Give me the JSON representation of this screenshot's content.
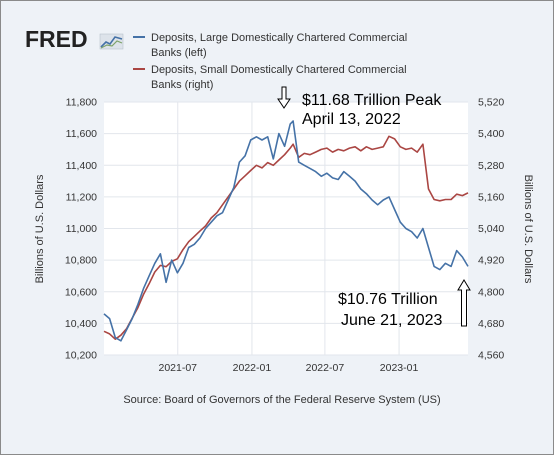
{
  "logo": {
    "text": "FRED"
  },
  "colors": {
    "left_series": "#4572a7",
    "right_series": "#aa4643",
    "plot_bg": "#ffffff",
    "page_bg": "#eef2f7",
    "grid": "#e2e6ec"
  },
  "source": "Source: Board of Governors of the Federal Reserve System (US)",
  "annotations": {
    "peak_line1": "$11.68 Trillion Peak",
    "peak_line2": "April 13, 2022",
    "current_line1": "$10.76 Trillion",
    "current_line2": "June 21, 2023"
  },
  "chart_data": {
    "type": "line",
    "grid": true,
    "legend_position": "top-left",
    "xlim": [
      "2020-12-30",
      "2023-06-21"
    ],
    "x_ticks": [
      "2021-07",
      "2022-01",
      "2022-07",
      "2023-01"
    ],
    "left_axis": {
      "label": "Billions of U.S. Dollars",
      "ylim": [
        10200,
        11800
      ],
      "ticks": [
        "10,200",
        "10,400",
        "10,600",
        "10,800",
        "11,000",
        "11,200",
        "11,400",
        "11,600",
        "11,800"
      ]
    },
    "right_axis": {
      "label": "Billions of U.S. Dollars",
      "ylim": [
        4560,
        5520
      ],
      "ticks": [
        "4,560",
        "4,680",
        "4,800",
        "4,920",
        "5,040",
        "5,160",
        "5,280",
        "5,400",
        "5,520"
      ]
    },
    "series": [
      {
        "name": "Deposits, Large Domestically Chartered Commercial Banks (left)",
        "name_lines": [
          "Deposits, Large Domestically Chartered Commercial",
          "Banks (left)"
        ],
        "axis": "left",
        "color": "#4572a7",
        "points": [
          [
            "2020-12-30",
            10460
          ],
          [
            "2021-01-13",
            10430
          ],
          [
            "2021-01-27",
            10310
          ],
          [
            "2021-02-10",
            10290
          ],
          [
            "2021-02-24",
            10360
          ],
          [
            "2021-03-10",
            10430
          ],
          [
            "2021-03-24",
            10520
          ],
          [
            "2021-04-07",
            10620
          ],
          [
            "2021-04-21",
            10700
          ],
          [
            "2021-05-05",
            10780
          ],
          [
            "2021-05-19",
            10840
          ],
          [
            "2021-06-02",
            10660
          ],
          [
            "2021-06-16",
            10800
          ],
          [
            "2021-06-30",
            10720
          ],
          [
            "2021-07-14",
            10780
          ],
          [
            "2021-07-28",
            10880
          ],
          [
            "2021-08-11",
            10900
          ],
          [
            "2021-08-25",
            10940
          ],
          [
            "2021-09-08",
            11000
          ],
          [
            "2021-09-22",
            11040
          ],
          [
            "2021-10-06",
            11080
          ],
          [
            "2021-10-20",
            11100
          ],
          [
            "2021-11-03",
            11180
          ],
          [
            "2021-11-17",
            11260
          ],
          [
            "2021-12-01",
            11420
          ],
          [
            "2021-12-15",
            11460
          ],
          [
            "2021-12-29",
            11560
          ],
          [
            "2022-01-12",
            11580
          ],
          [
            "2022-01-26",
            11560
          ],
          [
            "2022-02-09",
            11580
          ],
          [
            "2022-02-23",
            11440
          ],
          [
            "2022-03-09",
            11600
          ],
          [
            "2022-03-23",
            11520
          ],
          [
            "2022-04-06",
            11660
          ],
          [
            "2022-04-13",
            11680
          ],
          [
            "2022-04-27",
            11420
          ],
          [
            "2022-05-11",
            11400
          ],
          [
            "2022-05-25",
            11380
          ],
          [
            "2022-06-08",
            11360
          ],
          [
            "2022-06-22",
            11330
          ],
          [
            "2022-07-06",
            11350
          ],
          [
            "2022-07-20",
            11320
          ],
          [
            "2022-08-03",
            11310
          ],
          [
            "2022-08-17",
            11360
          ],
          [
            "2022-08-31",
            11330
          ],
          [
            "2022-09-14",
            11300
          ],
          [
            "2022-09-28",
            11250
          ],
          [
            "2022-10-12",
            11220
          ],
          [
            "2022-10-26",
            11180
          ],
          [
            "2022-11-09",
            11150
          ],
          [
            "2022-11-23",
            11180
          ],
          [
            "2022-12-07",
            11200
          ],
          [
            "2022-12-21",
            11120
          ],
          [
            "2023-01-04",
            11040
          ],
          [
            "2023-01-18",
            11000
          ],
          [
            "2023-02-01",
            10980
          ],
          [
            "2023-02-15",
            10940
          ],
          [
            "2023-03-01",
            11000
          ],
          [
            "2023-03-15",
            10880
          ],
          [
            "2023-03-29",
            10760
          ],
          [
            "2023-04-12",
            10740
          ],
          [
            "2023-04-26",
            10780
          ],
          [
            "2023-05-10",
            10760
          ],
          [
            "2023-05-24",
            10860
          ],
          [
            "2023-06-07",
            10820
          ],
          [
            "2023-06-21",
            10760
          ]
        ]
      },
      {
        "name": "Deposits, Small Domestically Chartered Commercial Banks (right)",
        "name_lines": [
          "Deposits, Small Domestically Chartered Commercial",
          "Banks (right)"
        ],
        "axis": "right",
        "color": "#aa4643",
        "points": [
          [
            "2020-12-30",
            4650
          ],
          [
            "2021-01-13",
            4640
          ],
          [
            "2021-01-27",
            4620
          ],
          [
            "2021-02-10",
            4635
          ],
          [
            "2021-02-24",
            4660
          ],
          [
            "2021-03-10",
            4700
          ],
          [
            "2021-03-24",
            4740
          ],
          [
            "2021-04-07",
            4790
          ],
          [
            "2021-04-21",
            4830
          ],
          [
            "2021-05-05",
            4875
          ],
          [
            "2021-05-19",
            4900
          ],
          [
            "2021-06-02",
            4895
          ],
          [
            "2021-06-16",
            4915
          ],
          [
            "2021-06-30",
            4925
          ],
          [
            "2021-07-14",
            4960
          ],
          [
            "2021-07-28",
            4990
          ],
          [
            "2021-08-11",
            5010
          ],
          [
            "2021-08-25",
            5030
          ],
          [
            "2021-09-08",
            5050
          ],
          [
            "2021-09-22",
            5080
          ],
          [
            "2021-10-06",
            5100
          ],
          [
            "2021-10-20",
            5130
          ],
          [
            "2021-11-03",
            5160
          ],
          [
            "2021-11-17",
            5190
          ],
          [
            "2021-12-01",
            5220
          ],
          [
            "2021-12-15",
            5240
          ],
          [
            "2021-12-29",
            5260
          ],
          [
            "2022-01-12",
            5280
          ],
          [
            "2022-01-26",
            5270
          ],
          [
            "2022-02-09",
            5290
          ],
          [
            "2022-02-23",
            5280
          ],
          [
            "2022-03-09",
            5300
          ],
          [
            "2022-03-23",
            5320
          ],
          [
            "2022-04-06",
            5345
          ],
          [
            "2022-04-13",
            5360
          ],
          [
            "2022-04-27",
            5310
          ],
          [
            "2022-05-11",
            5325
          ],
          [
            "2022-05-25",
            5320
          ],
          [
            "2022-06-08",
            5330
          ],
          [
            "2022-06-22",
            5340
          ],
          [
            "2022-07-06",
            5345
          ],
          [
            "2022-07-20",
            5330
          ],
          [
            "2022-08-03",
            5340
          ],
          [
            "2022-08-17",
            5335
          ],
          [
            "2022-08-31",
            5345
          ],
          [
            "2022-09-14",
            5350
          ],
          [
            "2022-09-28",
            5335
          ],
          [
            "2022-10-12",
            5350
          ],
          [
            "2022-10-26",
            5340
          ],
          [
            "2022-11-09",
            5345
          ],
          [
            "2022-11-23",
            5350
          ],
          [
            "2022-12-07",
            5390
          ],
          [
            "2022-12-21",
            5380
          ],
          [
            "2023-01-04",
            5350
          ],
          [
            "2023-01-18",
            5340
          ],
          [
            "2023-02-01",
            5345
          ],
          [
            "2023-02-15",
            5330
          ],
          [
            "2023-03-01",
            5360
          ],
          [
            "2023-03-15",
            5190
          ],
          [
            "2023-03-29",
            5150
          ],
          [
            "2023-04-12",
            5145
          ],
          [
            "2023-04-26",
            5150
          ],
          [
            "2023-05-10",
            5150
          ],
          [
            "2023-05-24",
            5170
          ],
          [
            "2023-06-07",
            5165
          ],
          [
            "2023-06-21",
            5175
          ]
        ]
      }
    ]
  }
}
